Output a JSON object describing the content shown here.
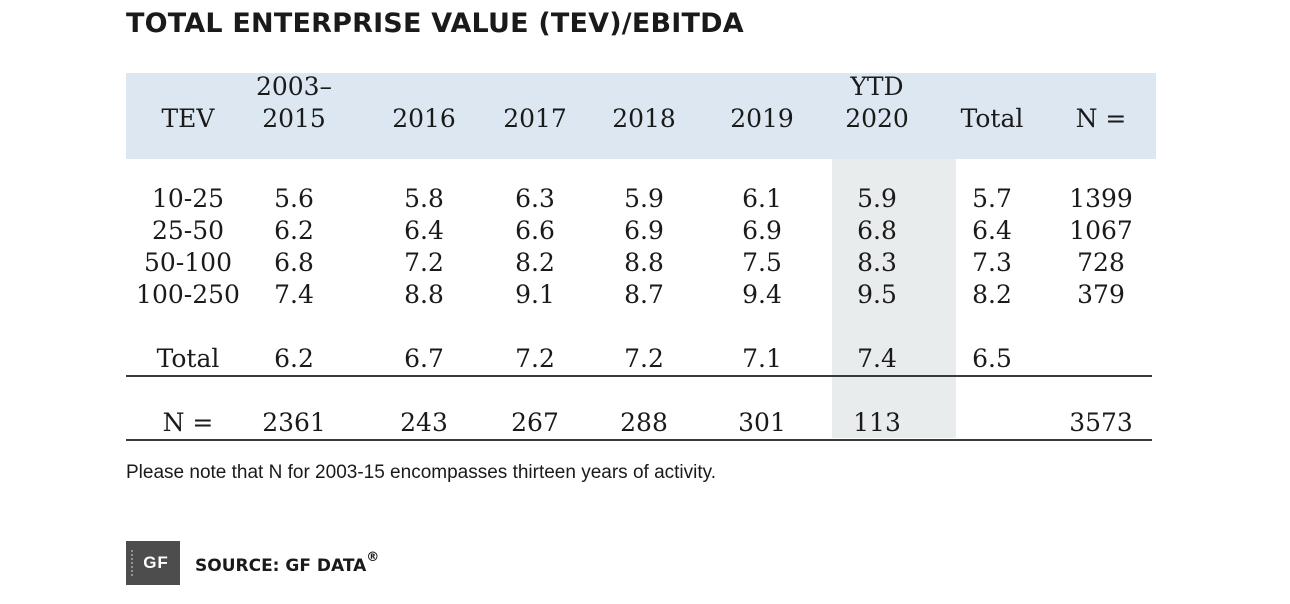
{
  "title": "TOTAL ENTERPRISE VALUE (TEV)/EBITDA",
  "table": {
    "headers": [
      {
        "line1": "",
        "line2": "TEV"
      },
      {
        "line1": "2003–",
        "line2": "2015"
      },
      {
        "line1": "",
        "line2": "2016"
      },
      {
        "line1": "",
        "line2": "2017"
      },
      {
        "line1": "",
        "line2": "2018"
      },
      {
        "line1": "",
        "line2": "2019"
      },
      {
        "line1": "YTD",
        "line2": "2020"
      },
      {
        "line1": "",
        "line2": "Total"
      },
      {
        "line1": "",
        "line2": "N ="
      }
    ],
    "rows": [
      [
        "10-25",
        "5.6",
        "5.8",
        "6.3",
        "5.9",
        "6.1",
        "5.9",
        "5.7",
        "1399"
      ],
      [
        "25-50",
        "6.2",
        "6.4",
        "6.6",
        "6.9",
        "6.9",
        "6.8",
        "6.4",
        "1067"
      ],
      [
        "50-100",
        "6.8",
        "7.2",
        "8.2",
        "8.8",
        "7.5",
        "8.3",
        "7.3",
        "728"
      ],
      [
        "100-250",
        "7.4",
        "8.8",
        "9.1",
        "8.7",
        "9.4",
        "9.5",
        "8.2",
        "379"
      ]
    ],
    "total_row": [
      "Total",
      "6.2",
      "6.7",
      "7.2",
      "7.2",
      "7.1",
      "7.4",
      "6.5",
      ""
    ],
    "n_row": [
      "N =",
      "2361",
      "243",
      "267",
      "288",
      "301",
      "113",
      "",
      "3573"
    ]
  },
  "footnote": "Please note that N for 2003-15 encompasses thirteen years of activity.",
  "source": {
    "logo_text": "GF",
    "label": "SOURCE: GF DATA",
    "registered_mark": "®"
  },
  "colors": {
    "header_band": "#dce7f1",
    "ytd_column_band": "#e9ecec",
    "logo_bg": "#4d4d4d"
  }
}
